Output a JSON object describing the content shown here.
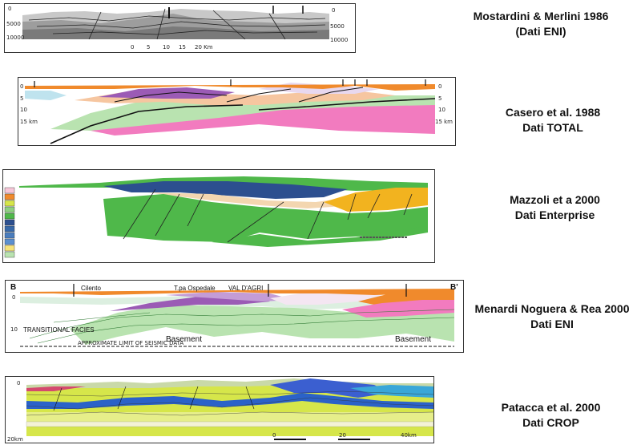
{
  "sections": [
    {
      "caption_line1": "Mostardini & Merlini 1986",
      "caption_line2": "(Dati ENI)",
      "depth_labels_left": [
        "0",
        "5000",
        "10000"
      ],
      "depth_labels_right": [
        "0",
        "5000",
        "10000"
      ],
      "scale_labels": [
        "0",
        "5",
        "10",
        "15",
        "20 Km"
      ]
    },
    {
      "caption_line1": "Casero et al.  1988",
      "caption_line2": "Dati TOTAL",
      "depth_labels_left": [
        "0",
        "5",
        "10",
        "15 km"
      ],
      "depth_labels_right": [
        "0",
        "5",
        "10",
        "15 km"
      ]
    },
    {
      "caption_line1": "Mazzoli et a 2000",
      "caption_line2": "Dati Enterprise"
    },
    {
      "caption_line1": "Menardi Noguera & Rea 2000",
      "caption_line2": "Dati ENI",
      "corner_left": "B",
      "corner_right": "B'",
      "place_labels": [
        "Cilento",
        "T.pa Ospedale",
        "VAL D'AGRI"
      ],
      "depth_labels": [
        "0",
        "10"
      ],
      "transitional": "TRANSITIONAL FACIES",
      "basement": "Basement",
      "seismic_limit": "APPROXIMATE LIMIT OF SEISMIC DATA"
    },
    {
      "caption_line1": "Patacca et al.  2000",
      "caption_line2": "Dati CROP",
      "depth_labels": [
        "0",
        "20km"
      ],
      "scale_labels": [
        "0",
        "20",
        "40km"
      ]
    }
  ],
  "colors": {
    "orange": "#f08a2c",
    "green": "#b9e3b0",
    "pink": "#f27bbf",
    "purple": "#9b5bb5",
    "blue_dark": "#2c4f8f",
    "green_mid": "#4fb84a",
    "yellow_green": "#d6e64a",
    "blue_band": "#2b62c8"
  }
}
